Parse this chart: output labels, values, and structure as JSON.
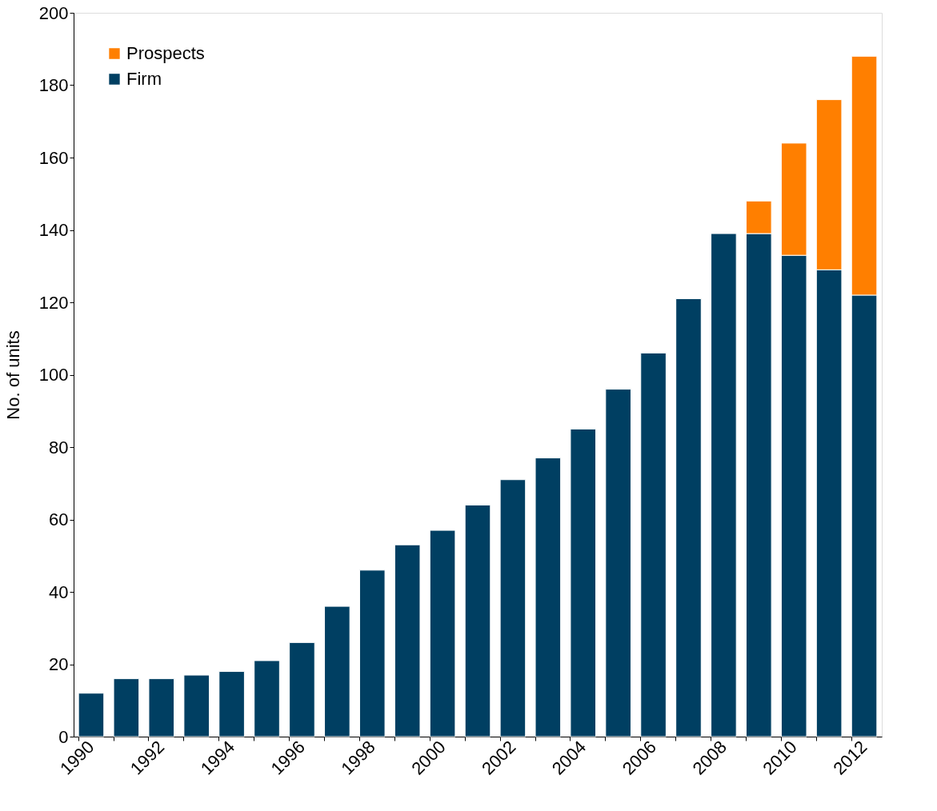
{
  "chart_data": {
    "type": "bar",
    "stacked": true,
    "ylabel": "No. of units",
    "categories": [
      "1990",
      null,
      "1992",
      null,
      "1994",
      null,
      "1996",
      null,
      "1998",
      null,
      "2000",
      null,
      "2002",
      null,
      "2004",
      null,
      "2006",
      null,
      "2008",
      null,
      "2010",
      null,
      "2012"
    ],
    "series": [
      {
        "name": "Firm",
        "color": "#003f62",
        "values": [
          12,
          16,
          16,
          17,
          18,
          21,
          26,
          36,
          46,
          53,
          57,
          64,
          71,
          77,
          85,
          96,
          106,
          121,
          139,
          139,
          133,
          129,
          122
        ]
      },
      {
        "name": "Prospects",
        "color": "#ff7f00",
        "values": [
          null,
          null,
          null,
          null,
          null,
          null,
          null,
          null,
          null,
          null,
          null,
          null,
          null,
          null,
          null,
          null,
          null,
          null,
          null,
          9,
          31,
          47,
          66
        ]
      }
    ],
    "ylim": [
      0,
      200
    ],
    "yticks": [
      0,
      20,
      40,
      60,
      80,
      100,
      120,
      140,
      160,
      180,
      200
    ],
    "grid": false,
    "legend": "top left"
  }
}
